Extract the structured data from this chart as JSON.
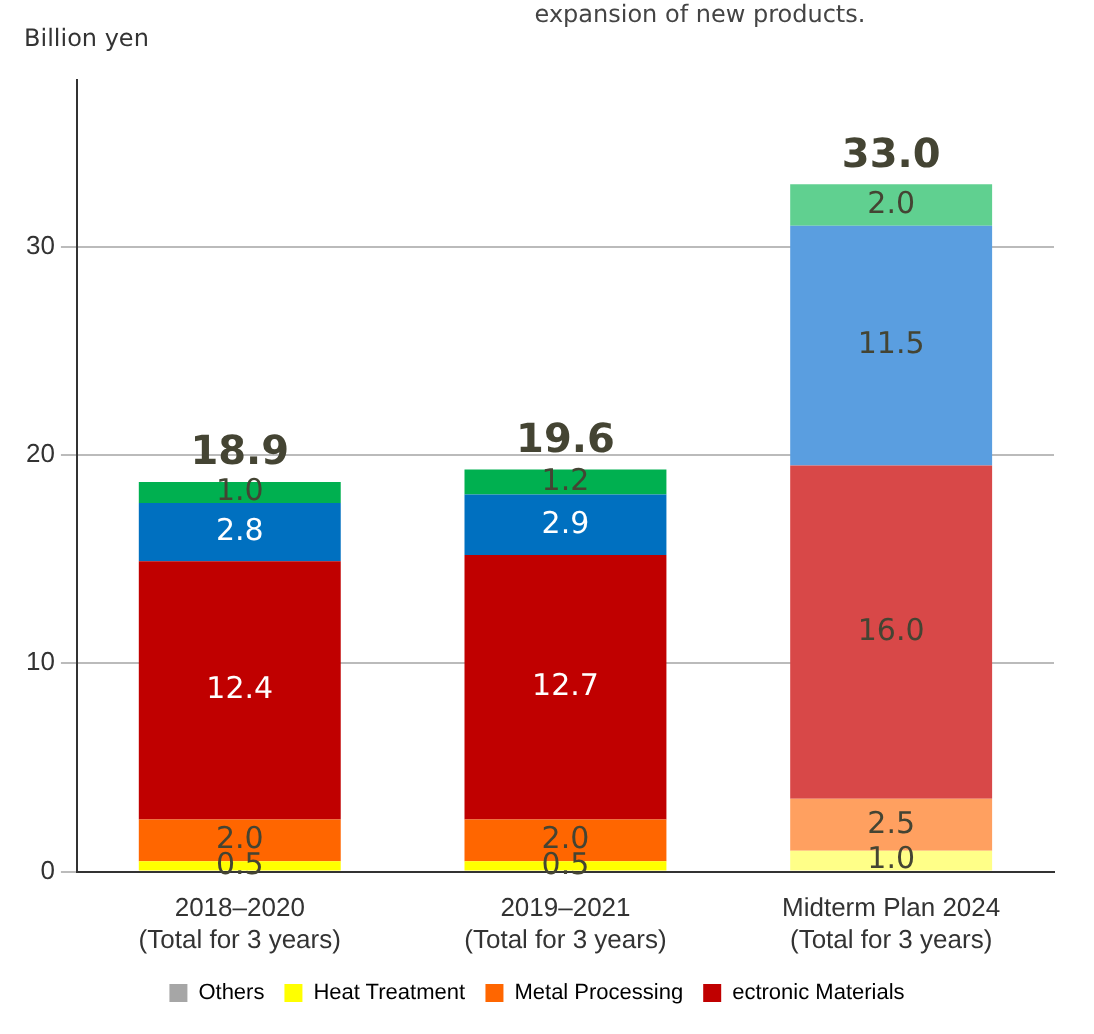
{
  "chart_data": {
    "type": "bar",
    "stacked": true,
    "title": "expansion of new products.",
    "ylabel": "Billion yen",
    "categories": [
      "2018–2020\n(Total for 3 years)",
      "2019–2021\n(Total for 3 years)",
      "Midterm Plan 2024\n(Total for 3 years)"
    ],
    "ylim": [
      0,
      38
    ],
    "yticks": [
      0,
      10,
      20,
      30
    ],
    "grid": "y",
    "legend": "bottom",
    "totals": [
      "18.9",
      "19.6",
      "33.0"
    ],
    "series": [
      {
        "name": "Others",
        "color": "#a6a6a6",
        "values": [
          null,
          null,
          null
        ],
        "value_labels": [
          null,
          null,
          null
        ]
      },
      {
        "name": "Heat Treatment",
        "color": "#ffff00",
        "colors": [
          "#ffff00",
          "#ffff00",
          "#ffff88"
        ],
        "values": [
          0.5,
          0.5,
          1.0
        ],
        "value_labels": [
          "0.5",
          "0.5",
          "1.0"
        ]
      },
      {
        "name": "Metal Processing",
        "color": "#ff6600",
        "colors": [
          "#ff6600",
          "#ff6600",
          "#ffa060"
        ],
        "values": [
          2.0,
          2.0,
          2.5
        ],
        "value_labels": [
          "2.0",
          "2.0",
          "2.5"
        ]
      },
      {
        "name": "ectronic Materials",
        "color": "#c00000",
        "colors": [
          "#c00000",
          "#c00000",
          "#d84848"
        ],
        "values": [
          12.4,
          12.7,
          16.0
        ],
        "value_labels": [
          "12.4",
          "12.7",
          "16.0"
        ]
      },
      {
        "color": "#0070c0",
        "colors": [
          "#0070c0",
          "#0070c0",
          "#5a9ee0"
        ],
        "values": [
          2.8,
          2.9,
          11.5
        ],
        "value_labels": [
          "2.8",
          "2.9",
          "11.5"
        ]
      },
      {
        "color": "#00b050",
        "colors": [
          "#00b050",
          "#00b050",
          "#60d090"
        ],
        "values": [
          1.0,
          1.2,
          2.0
        ],
        "value_labels": [
          "1.0",
          "1.2",
          "2.0"
        ]
      }
    ]
  }
}
